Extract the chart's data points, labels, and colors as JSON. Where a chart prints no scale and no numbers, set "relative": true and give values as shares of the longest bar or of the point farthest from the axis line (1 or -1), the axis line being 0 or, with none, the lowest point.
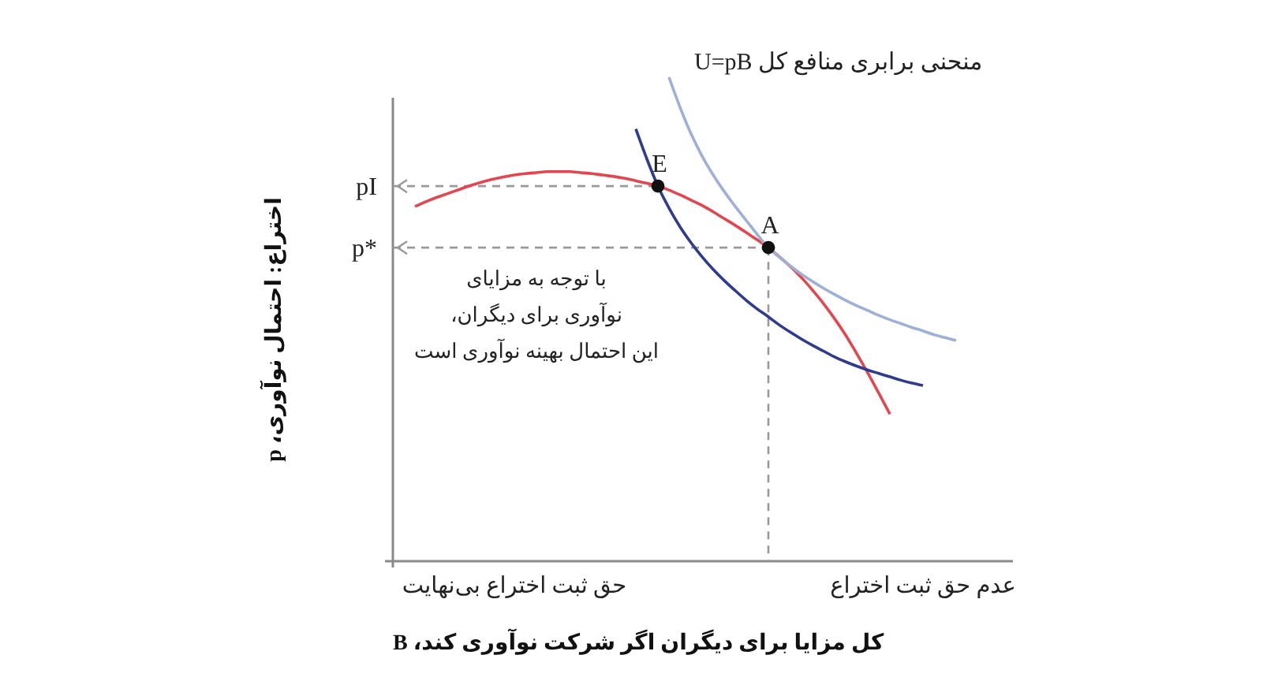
{
  "chart_data": {
    "type": "line",
    "relative": true,
    "xlabel": "کل مزایا برای دیگران اگر شرکت نوآوری کند، B",
    "ylabel": "اختراع: احتمال نوآوری، p",
    "categories": [
      null,
      null,
      null,
      null,
      null,
      null,
      null,
      null,
      null,
      null,
      null,
      "حق ثبت اختراع بی‌نهایت",
      null,
      null,
      null,
      null,
      null,
      null,
      null,
      null,
      null,
      null,
      null,
      null,
      null,
      null,
      null,
      null,
      null,
      null,
      null,
      null,
      null,
      null,
      null,
      null,
      null,
      null,
      null,
      null,
      null,
      null,
      null,
      null,
      null,
      null,
      null,
      null,
      "عدم حق ثبت اختراع",
      null,
      null,
      null,
      null,
      null,
      null,
      null,
      null
    ],
    "annotations": [
      "با توجه به مزایای\nنوآوری برای دیگران،\nاین احتمال بهینه نوآوری است"
    ],
    "series": [
      {
        "name": "pI",
        "color": "#999999",
        "line_style": "dashed",
        "values": [
          0.775,
          0.775,
          0.775,
          0.775,
          0.775,
          0.775,
          0.775,
          0.775,
          0.775,
          0.775,
          0.775,
          0.775,
          0.775,
          0.775,
          0.775,
          0.775,
          0.775,
          0.775,
          0.775,
          0.775,
          0.775,
          0.775,
          0.775,
          0.775,
          0.775,
          null,
          null,
          null,
          null,
          null,
          null,
          null,
          null,
          null,
          null,
          null,
          null,
          null,
          null,
          null,
          null,
          null,
          null,
          null,
          null,
          null,
          null,
          null,
          null,
          null,
          null,
          null,
          null,
          null,
          null,
          null,
          null
        ]
      },
      {
        "name": "p*",
        "color": "#999999",
        "line_style": "dashed",
        "values": [
          0.648,
          0.648,
          0.648,
          0.648,
          0.648,
          0.648,
          0.648,
          0.648,
          0.648,
          0.648,
          0.648,
          0.648,
          0.648,
          0.648,
          0.648,
          0.648,
          0.648,
          0.648,
          0.648,
          0.648,
          0.648,
          0.648,
          0.648,
          0.648,
          0.648,
          0.648,
          0.648,
          0.648,
          0.648,
          0.648,
          0.648,
          0.648,
          0.648,
          0.648,
          0.648,
          null,
          null,
          null,
          null,
          null,
          null,
          null,
          null,
          null,
          null,
          null,
          null,
          null,
          null,
          null,
          null,
          null,
          null,
          null,
          null,
          null,
          null
        ]
      },
      {
        "color": "#e2474f",
        "values": [
          null,
          null,
          0.733,
          0.743,
          0.752,
          0.76,
          0.768,
          0.776,
          0.783,
          0.789,
          0.794,
          0.798,
          0.801,
          0.803,
          0.805,
          0.805,
          0.805,
          0.803,
          0.801,
          0.798,
          0.795,
          0.791,
          0.786,
          0.781,
          0.775,
          0.767,
          0.757,
          0.746,
          0.735,
          0.722,
          0.708,
          0.694,
          0.679,
          0.664,
          0.648,
          0.629,
          0.609,
          0.586,
          0.56,
          0.532,
          0.501,
          0.467,
          0.429,
          0.389,
          0.347,
          0.304,
          null,
          null,
          null,
          null,
          null,
          null,
          null,
          null,
          null,
          null,
          null
        ]
      },
      {
        "color": "#2e3c8e",
        "values": [
          null,
          null,
          null,
          null,
          null,
          null,
          null,
          null,
          null,
          null,
          null,
          null,
          null,
          null,
          null,
          null,
          null,
          null,
          null,
          null,
          null,
          null,
          0.893,
          0.831,
          0.775,
          0.73,
          0.691,
          0.658,
          0.629,
          0.603,
          0.58,
          0.559,
          0.539,
          0.521,
          0.505,
          0.488,
          0.473,
          0.459,
          0.446,
          0.434,
          0.422,
          0.412,
          0.403,
          0.395,
          0.388,
          0.381,
          0.374,
          0.368,
          0.363,
          null,
          null,
          null,
          null,
          null,
          null,
          null,
          null
        ]
      },
      {
        "name": "منحنی برابری منافع کل U=pB",
        "color": "#9db0d8",
        "values": [
          null,
          null,
          null,
          null,
          null,
          null,
          null,
          null,
          null,
          null,
          null,
          null,
          null,
          null,
          null,
          null,
          null,
          null,
          null,
          null,
          null,
          null,
          null,
          null,
          null,
          1,
          0.938,
          0.883,
          0.837,
          0.798,
          0.764,
          0.733,
          0.704,
          0.675,
          0.648,
          0.628,
          0.61,
          0.593,
          0.578,
          0.564,
          0.551,
          0.539,
          0.528,
          0.518,
          0.508,
          0.499,
          0.491,
          0.483,
          0.476,
          0.468,
          0.462,
          0.456,
          null,
          null,
          null,
          null,
          null
        ]
      },
      {
        "type": "scatter",
        "name": "E",
        "color": "#111111",
        "marker": "circle",
        "values": [
          null,
          null,
          null,
          null,
          null,
          null,
          null,
          null,
          null,
          null,
          null,
          null,
          null,
          null,
          null,
          null,
          null,
          null,
          null,
          null,
          null,
          null,
          null,
          null,
          0.775,
          null,
          null,
          null,
          null,
          null,
          null,
          null,
          null,
          null,
          null,
          null,
          null,
          null,
          null,
          null,
          null,
          null,
          null,
          null,
          null,
          null,
          null,
          null,
          null,
          null,
          null,
          null,
          null,
          null,
          null,
          null,
          null
        ]
      },
      {
        "type": "scatter",
        "name": "A",
        "color": "#111111",
        "marker": "circle",
        "values": [
          null,
          null,
          null,
          null,
          null,
          null,
          null,
          null,
          null,
          null,
          null,
          null,
          null,
          null,
          null,
          null,
          null,
          null,
          null,
          null,
          null,
          null,
          null,
          null,
          null,
          null,
          null,
          null,
          null,
          null,
          null,
          null,
          null,
          null,
          0.648,
          null,
          null,
          null,
          null,
          null,
          null,
          null,
          null,
          null,
          null,
          null,
          null,
          null,
          null,
          null,
          null,
          null,
          null,
          null,
          null,
          null,
          null
        ]
      }
    ]
  }
}
